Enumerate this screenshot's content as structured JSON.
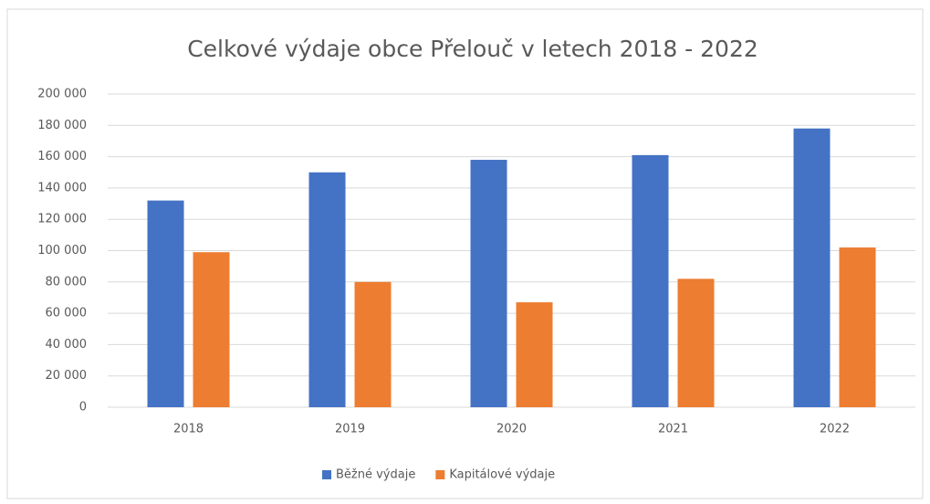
{
  "chart_data": {
    "type": "bar",
    "title": "Celkové výdaje obce Přelouč v letech 2018 - 2022",
    "categories": [
      "2018",
      "2019",
      "2020",
      "2021",
      "2022"
    ],
    "series": [
      {
        "name": "Běžné výdaje",
        "color": "#4472c4",
        "values": [
          132000,
          150000,
          158000,
          161000,
          178000
        ]
      },
      {
        "name": "Kapitálové výdaje",
        "color": "#ed7d31",
        "values": [
          99000,
          80000,
          67000,
          82000,
          102000
        ]
      }
    ],
    "ylim": [
      0,
      200000
    ],
    "yticks": [
      0,
      {
        "value": 20000,
        "label": "20 000"
      },
      {
        "value": 40000,
        "label": "40 000"
      },
      {
        "value": 60000,
        "label": "60 000"
      },
      {
        "value": 80000,
        "label": "80 000"
      },
      {
        "value": 100000,
        "label": "100 000"
      },
      {
        "value": 120000,
        "label": "120 000"
      },
      {
        "value": 140000,
        "label": "140 000"
      },
      {
        "value": 160000,
        "label": "160 000"
      },
      {
        "value": 180000,
        "label": "180 000"
      },
      {
        "value": 200000,
        "label": "200 000"
      }
    ],
    "grid": true,
    "legend": "bottom"
  }
}
